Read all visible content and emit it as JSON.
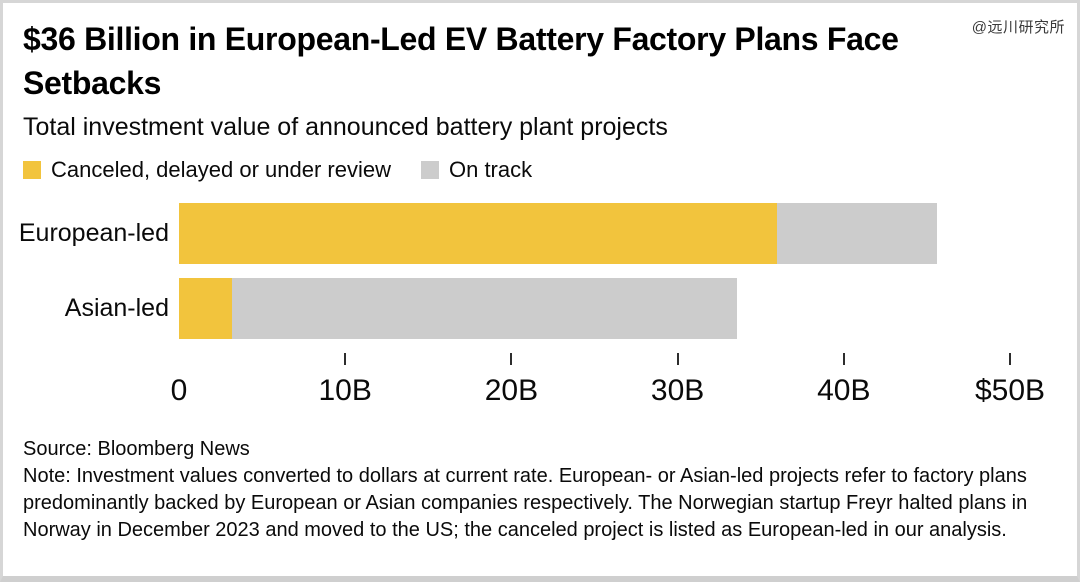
{
  "watermark": {
    "text": "@远川研究所"
  },
  "footer": {
    "source": "Source: Bloomberg News",
    "note": "Note: Investment values converted to dollars at current rate. European- or Asian-led projects refer to factory plans predominantly backed by European or Asian companies respectively. The Norwegian startup Freyr halted plans in Norway in December 2023 and moved to the US; the canceled project is listed as European-led in our analysis."
  },
  "chart_data": {
    "type": "bar",
    "orientation": "horizontal",
    "stacked": true,
    "title": "$36 Billion in European-Led EV Battery Factory Plans Face Setbacks",
    "subtitle": "Total investment value of announced battery plant projects",
    "categories": [
      "European-led",
      "Asian-led"
    ],
    "series": [
      {
        "name": "Canceled, delayed or under review",
        "color": "#F2C43D",
        "values": [
          36,
          3.2
        ]
      },
      {
        "name": "On track",
        "color": "#CCCCCC",
        "values": [
          9.6,
          30.4
        ]
      }
    ],
    "totals": [
      45.6,
      33.6
    ],
    "xlabel": "",
    "ylabel": "",
    "xlim": [
      0,
      50
    ],
    "xticks": [
      {
        "value": 0,
        "label": "0"
      },
      {
        "value": 10,
        "label": "10B"
      },
      {
        "value": 20,
        "label": "20B"
      },
      {
        "value": 30,
        "label": "30B"
      },
      {
        "value": 40,
        "label": "40B"
      },
      {
        "value": 50,
        "label": "$50B"
      }
    ],
    "tick_marks_at": [
      10,
      20,
      30,
      40,
      50
    ],
    "grid": false,
    "legend_position": "top"
  }
}
